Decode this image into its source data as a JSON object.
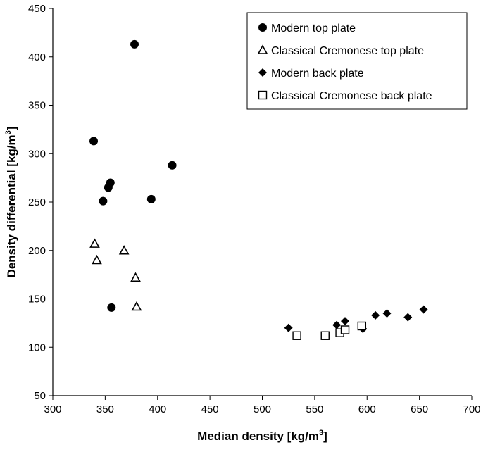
{
  "chart_data": {
    "type": "scatter",
    "xlabel": "Median density [kg/m",
    "ylabel": "Density differential [kg/m",
    "unit_superscript": "3",
    "unit_close": "]",
    "xlim": [
      300,
      700
    ],
    "ylim": [
      50,
      450
    ],
    "x_ticks": [
      300,
      350,
      400,
      450,
      500,
      550,
      600,
      650,
      700
    ],
    "y_ticks": [
      50,
      100,
      150,
      200,
      250,
      300,
      350,
      400,
      450
    ],
    "grid": false,
    "legend_position": "top-right",
    "series": [
      {
        "name": "Modern top plate",
        "marker": "filled-circle",
        "points": [
          [
            378,
            413
          ],
          [
            339,
            313
          ],
          [
            414,
            288
          ],
          [
            355,
            270
          ],
          [
            353,
            265
          ],
          [
            348,
            251
          ],
          [
            394,
            253
          ],
          [
            356,
            141
          ]
        ]
      },
      {
        "name": "Classical Cremonese top plate",
        "marker": "open-triangle",
        "points": [
          [
            340,
            207
          ],
          [
            342,
            190
          ],
          [
            368,
            200
          ],
          [
            379,
            172
          ],
          [
            380,
            142
          ]
        ]
      },
      {
        "name": "Modern back plate",
        "marker": "filled-diamond",
        "points": [
          [
            525,
            120
          ],
          [
            571,
            123
          ],
          [
            579,
            127
          ],
          [
            596,
            119
          ],
          [
            608,
            133
          ],
          [
            619,
            135
          ],
          [
            639,
            131
          ],
          [
            654,
            139
          ]
        ]
      },
      {
        "name": "Classical Cremonese back plate",
        "marker": "open-square",
        "points": [
          [
            533,
            112
          ],
          [
            560,
            112
          ],
          [
            574,
            115
          ],
          [
            579,
            118
          ],
          [
            595,
            122
          ]
        ]
      }
    ]
  }
}
